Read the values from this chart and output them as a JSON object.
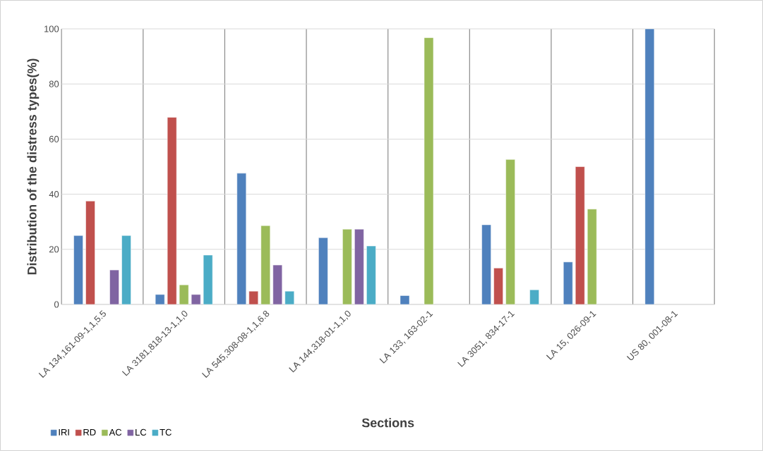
{
  "chart_data": {
    "type": "bar",
    "xlabel": "Sections",
    "ylabel": "Distribution of the distress types(%)",
    "categories": [
      "LA 134,161-09-1,1,5.5",
      "LA 3181,818-13-1,1,0",
      "LA 545,308-08-1,1,6.8",
      "LA 144,318-01-1,1,0",
      "LA 133, 163-02-1",
      "LA 3051, 834-17-1",
      "LA 15, 026-09-1",
      "US 80, 001-08-1"
    ],
    "series": [
      {
        "name": "IRI",
        "color": "#4f81bd",
        "values": [
          25,
          3.6,
          47.6,
          24.2,
          3.2,
          28.9,
          15.4,
          100
        ]
      },
      {
        "name": "RD",
        "color": "#c0504d",
        "values": [
          37.5,
          67.9,
          4.8,
          null,
          null,
          13.2,
          50,
          null
        ]
      },
      {
        "name": "AC",
        "color": "#9bbb59",
        "values": [
          null,
          7.1,
          28.6,
          27.3,
          96.8,
          52.6,
          34.6,
          null
        ]
      },
      {
        "name": "LC",
        "color": "#8064a2",
        "values": [
          12.5,
          3.6,
          14.3,
          27.3,
          null,
          null,
          null,
          null
        ]
      },
      {
        "name": "TC",
        "color": "#4bacc6",
        "values": [
          25,
          17.9,
          4.8,
          21.2,
          null,
          5.3,
          null,
          null
        ]
      }
    ],
    "ylim": [
      0,
      100
    ],
    "yticks": [
      0,
      20,
      40,
      60,
      80,
      100
    ],
    "grid": true,
    "legend": "bottom left"
  }
}
